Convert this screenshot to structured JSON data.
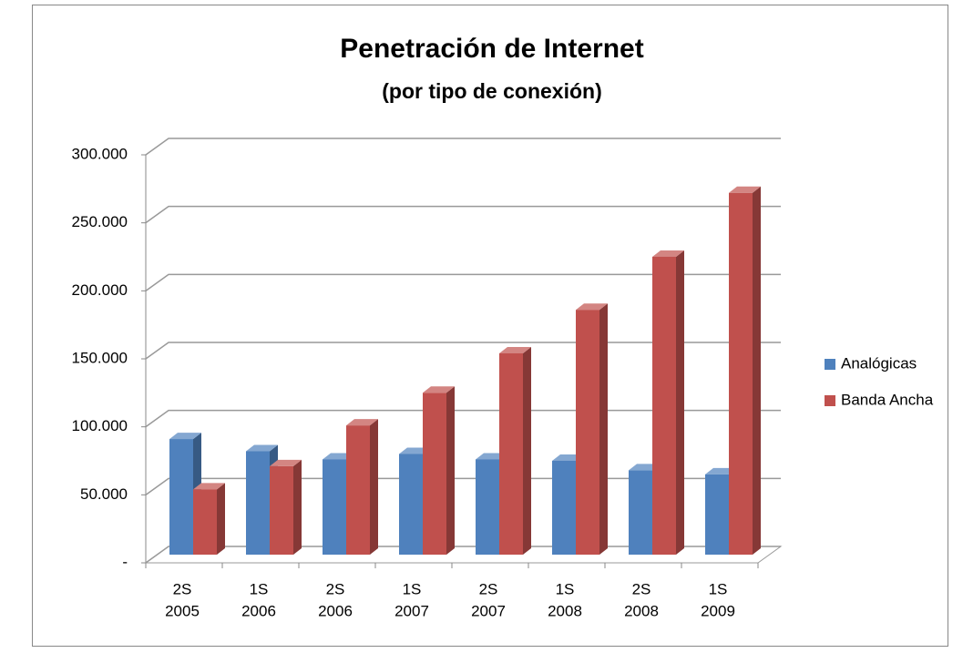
{
  "chart_data": {
    "type": "bar3d",
    "title": "Penetración de Internet",
    "subtitle": "(por tipo de conexión)",
    "categories": [
      [
        "2S",
        "2005"
      ],
      [
        "1S",
        "2006"
      ],
      [
        "2S",
        "2006"
      ],
      [
        "1S",
        "2007"
      ],
      [
        "2S",
        "2007"
      ],
      [
        "1S",
        "2008"
      ],
      [
        "2S",
        "2008"
      ],
      [
        "1S",
        "2009"
      ]
    ],
    "series": [
      {
        "name": "Analógicas",
        "color": "#4f81bd",
        "values": [
          85000,
          76000,
          70000,
          74000,
          70000,
          69000,
          62000,
          59000
        ]
      },
      {
        "name": "Banda Ancha",
        "color": "#c0504d",
        "values": [
          48000,
          65000,
          95000,
          119000,
          148000,
          180000,
          219000,
          266000
        ]
      }
    ],
    "ylim": [
      0,
      300000
    ],
    "yticks": [
      {
        "value": 0,
        "label": "-"
      },
      {
        "value": 50000,
        "label": "50.000"
      },
      {
        "value": 100000,
        "label": "100.000"
      },
      {
        "value": 150000,
        "label": "150.000"
      },
      {
        "value": 200000,
        "label": "200.000"
      },
      {
        "value": 250000,
        "label": "250.000"
      },
      {
        "value": 300000,
        "label": "300.000"
      }
    ],
    "grid": true,
    "legend": "right"
  }
}
